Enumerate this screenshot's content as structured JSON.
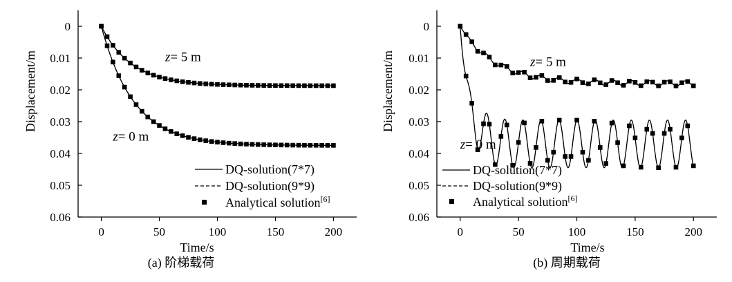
{
  "chart_data": [
    {
      "type": "line",
      "caption": "(a) 阶梯载荷",
      "xlabel": "Time/s",
      "ylabel": "Displacement/m",
      "xlim": [
        -20,
        220
      ],
      "ylim": [
        0.06,
        -0.005
      ],
      "y_inverted": true,
      "xticks": [
        "0",
        "50",
        "100",
        "150",
        "200"
      ],
      "yticks": [
        "0",
        "0.01",
        "0.02",
        "0.03",
        "0.04",
        "0.05",
        "0.06"
      ],
      "legend": {
        "placement": "bottom-right",
        "entries": [
          "DQ-solution(7*7)",
          "DQ-solution(9*9)",
          "Analytical solution"
        ],
        "analytical_ref": "[6]"
      },
      "annotations": [
        {
          "text_var": "z",
          "text_val": "= 5 m",
          "x": 55,
          "y": 0.011
        },
        {
          "text_var": "z",
          "text_val": "= 0 m",
          "x": 10,
          "y": 0.036
        }
      ],
      "series": [
        {
          "name": "DQ-solution(7*7)",
          "style": "solid",
          "curve": "z0",
          "model": "step",
          "amp": 0.0375,
          "tau": 28
        },
        {
          "name": "DQ-solution(9*9)",
          "style": "dashed",
          "curve": "z0",
          "model": "step",
          "amp": 0.0375,
          "tau": 28
        },
        {
          "name": "Analytical solution",
          "style": "marker",
          "curve": "z0",
          "model": "step",
          "amp": 0.0375,
          "tau": 28
        },
        {
          "name": "DQ-solution(7*7)",
          "style": "solid",
          "curve": "z5",
          "model": "step",
          "amp": 0.0187,
          "tau": 26
        },
        {
          "name": "DQ-solution(9*9)",
          "style": "dashed",
          "curve": "z5",
          "model": "step",
          "amp": 0.0187,
          "tau": 26
        },
        {
          "name": "Analytical solution",
          "style": "marker",
          "curve": "z5",
          "model": "step",
          "amp": 0.0187,
          "tau": 26
        }
      ]
    },
    {
      "type": "line",
      "caption": "(b) 周期载荷",
      "xlabel": "Time/s",
      "ylabel": "Displacement/m",
      "xlim": [
        -20,
        220
      ],
      "ylim": [
        0.06,
        -0.005
      ],
      "y_inverted": true,
      "xticks": [
        "0",
        "50",
        "100",
        "150",
        "200"
      ],
      "yticks": [
        "0",
        "0.01",
        "0.02",
        "0.03",
        "0.04",
        "0.05",
        "0.06"
      ],
      "legend": {
        "placement": "bottom-left",
        "entries": [
          "DQ-solution(7*7)",
          "DQ-solution(9*9)",
          "Analytical solution"
        ],
        "analytical_ref": "[6]"
      },
      "annotations": [
        {
          "text_var": "z",
          "text_val": "= 5 m",
          "x": 60,
          "y": 0.0125
        },
        {
          "text_var": "z",
          "text_val": "= 0 m",
          "x": 0,
          "y": 0.0385
        }
      ],
      "series": [
        {
          "name": "DQ-solution(7*7)",
          "style": "solid",
          "curve": "z0",
          "model": "periodic",
          "mean": 0.037,
          "tau": 8,
          "osc": 0.0075,
          "period": 15.5,
          "phase": 15
        },
        {
          "name": "DQ-solution(9*9)",
          "style": "dashed",
          "curve": "z0",
          "model": "periodic",
          "mean": 0.037,
          "tau": 8,
          "osc": 0.0075,
          "period": 15.5,
          "phase": 15
        },
        {
          "name": "Analytical solution",
          "style": "marker",
          "curve": "z0",
          "model": "periodic",
          "mean": 0.037,
          "tau": 8,
          "osc": 0.0075,
          "period": 15.5,
          "phase": 15
        },
        {
          "name": "DQ-solution(7*7)",
          "style": "solid",
          "curve": "z5",
          "model": "periodic",
          "mean": 0.018,
          "tau": 30,
          "osc": 0.0008,
          "period": 15.5,
          "phase": 15
        },
        {
          "name": "DQ-solution(9*9)",
          "style": "dashed",
          "curve": "z5",
          "model": "periodic",
          "mean": 0.018,
          "tau": 30,
          "osc": 0.0008,
          "period": 15.5,
          "phase": 15
        },
        {
          "name": "Analytical solution",
          "style": "marker",
          "curve": "z5",
          "model": "periodic",
          "mean": 0.018,
          "tau": 30,
          "osc": 0.0008,
          "period": 15.5,
          "phase": 15
        }
      ]
    }
  ]
}
